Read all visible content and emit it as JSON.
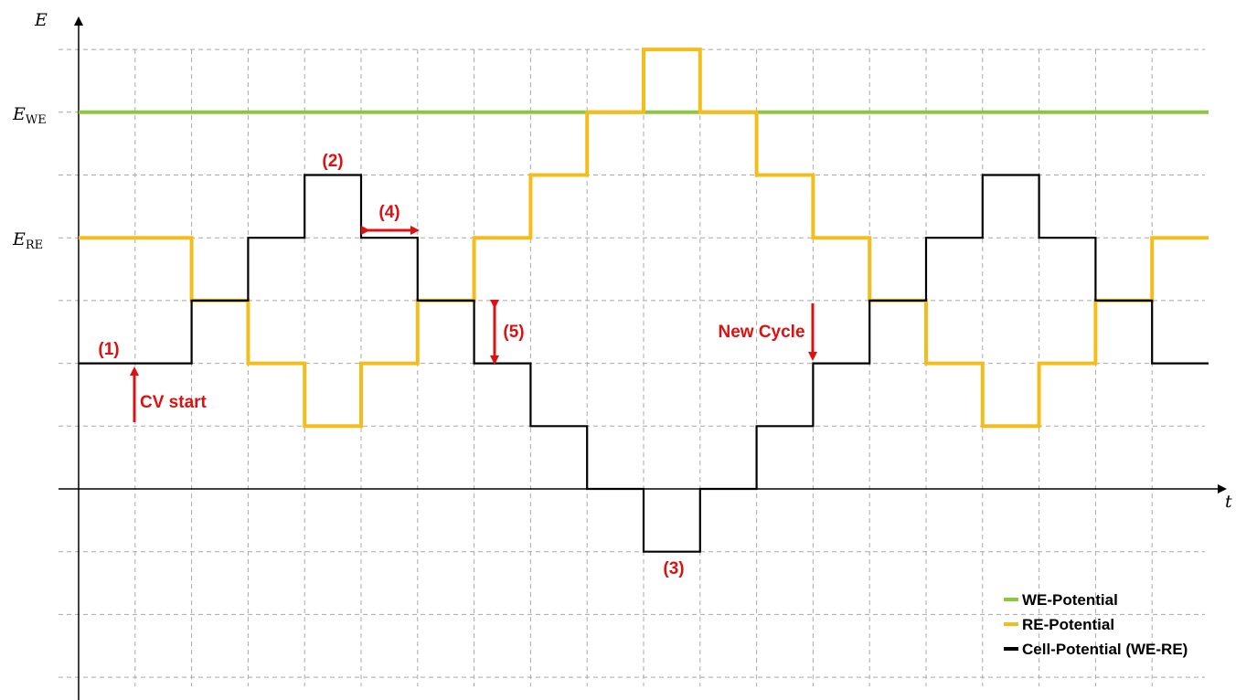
{
  "chart_data": {
    "type": "line",
    "step": true,
    "axes": {
      "x_label": "t",
      "y_label": "E",
      "grid": true,
      "x_range": [
        0,
        20
      ],
      "y_range": [
        -3,
        7
      ]
    },
    "y_ticks": [
      {
        "value": 6,
        "main": "E",
        "sub": "WE"
      },
      {
        "value": 4,
        "main": "E",
        "sub": "RE"
      }
    ],
    "series": [
      {
        "name": "WE-Potential",
        "color": "#8dc63f",
        "x": [
          0,
          20.0
        ],
        "y": [
          6,
          6
        ]
      },
      {
        "name": "RE-Potential",
        "color": "#f5bd1b",
        "x": [
          0,
          2,
          3,
          4,
          5,
          6,
          7,
          8,
          9,
          10,
          11,
          12,
          13,
          14,
          15,
          16,
          17,
          18,
          19,
          20
        ],
        "y": [
          4,
          3,
          2,
          1,
          2,
          3,
          4,
          5,
          6,
          7,
          6,
          5,
          4,
          3,
          2,
          1,
          2,
          3,
          4,
          4
        ]
      },
      {
        "name": "Cell-Potential (WE-RE)",
        "color": "#000000",
        "x": [
          0,
          2,
          3,
          4,
          5,
          6,
          7,
          8,
          9,
          10,
          11,
          12,
          13,
          14,
          15,
          16,
          17,
          18,
          19,
          20
        ],
        "y": [
          2,
          3,
          4,
          5,
          4,
          3,
          2,
          1,
          0,
          -1,
          0,
          1,
          2,
          3,
          4,
          5,
          4,
          3,
          2,
          2
        ]
      }
    ],
    "annotations": [
      {
        "text": "(1)",
        "x": 0.5,
        "y": 2
      },
      {
        "text": "CV start",
        "x": 1.0,
        "y": 1.3
      },
      {
        "text": "(2)",
        "x": 4.5,
        "y": 5
      },
      {
        "text": "(3)",
        "x": 10.5,
        "y": -1
      },
      {
        "text": "(4)",
        "x": 5.5,
        "y": 4
      },
      {
        "text": "(5)",
        "x": 7.5,
        "y": 2.5
      },
      {
        "text": "New Cycle",
        "x": 13.0,
        "y": 2
      }
    ],
    "legend": {
      "position": "bottom-right",
      "entries": [
        "WE-Potential",
        "RE-Potential",
        "Cell-Potential (WE-RE)"
      ]
    }
  }
}
